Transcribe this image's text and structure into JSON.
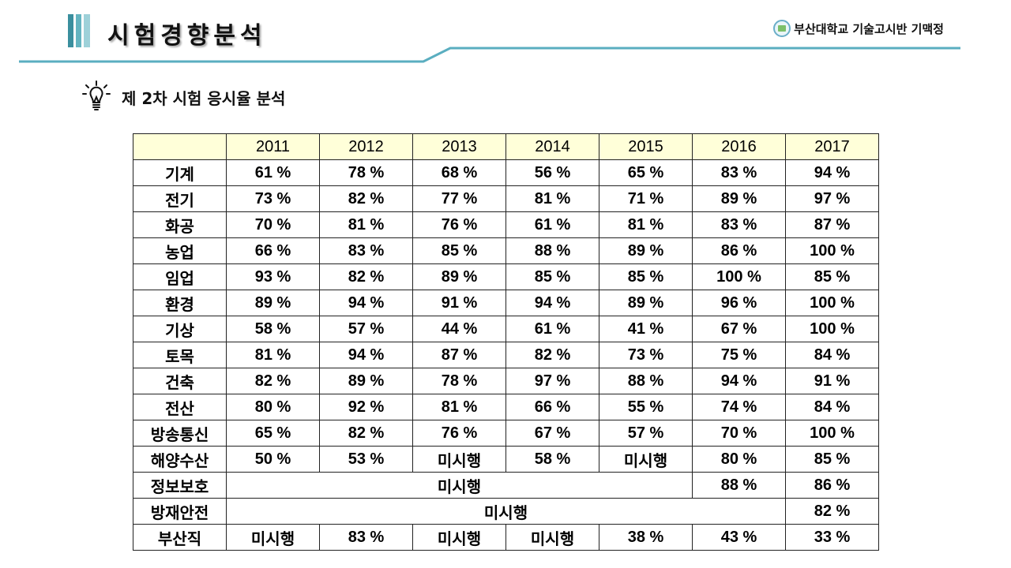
{
  "header": {
    "title": "시험경향분석",
    "org": "부산대학교 기술고시반 기맥정",
    "accent_color": "#5aaec0",
    "icon": "university-seal-icon"
  },
  "section": {
    "icon": "lightbulb-icon",
    "subtitle": "제 2차 시험 응시율 분석"
  },
  "table": {
    "corner": "",
    "years": [
      "2011",
      "2012",
      "2013",
      "2014",
      "2015",
      "2016",
      "2017"
    ],
    "rows": [
      {
        "field": "기계",
        "cells": [
          {
            "v": "61 %"
          },
          {
            "v": "78 %"
          },
          {
            "v": "68 %"
          },
          {
            "v": "56 %"
          },
          {
            "v": "65 %"
          },
          {
            "v": "83 %"
          },
          {
            "v": "94 %"
          }
        ]
      },
      {
        "field": "전기",
        "cells": [
          {
            "v": "73 %"
          },
          {
            "v": "82 %"
          },
          {
            "v": "77 %"
          },
          {
            "v": "81 %"
          },
          {
            "v": "71 %"
          },
          {
            "v": "89 %"
          },
          {
            "v": "97 %"
          }
        ]
      },
      {
        "field": "화공",
        "cells": [
          {
            "v": "70 %"
          },
          {
            "v": "81 %"
          },
          {
            "v": "76 %"
          },
          {
            "v": "61 %"
          },
          {
            "v": "81 %"
          },
          {
            "v": "83 %"
          },
          {
            "v": "87 %"
          }
        ]
      },
      {
        "field": "농업",
        "cells": [
          {
            "v": "66 %"
          },
          {
            "v": "83 %"
          },
          {
            "v": "85 %"
          },
          {
            "v": "88 %"
          },
          {
            "v": "89 %"
          },
          {
            "v": "86 %"
          },
          {
            "v": "100 %"
          }
        ]
      },
      {
        "field": "임업",
        "cells": [
          {
            "v": "93 %"
          },
          {
            "v": "82 %"
          },
          {
            "v": "89 %"
          },
          {
            "v": "85 %"
          },
          {
            "v": "85 %"
          },
          {
            "v": "100 %"
          },
          {
            "v": "85 %"
          }
        ]
      },
      {
        "field": "환경",
        "cells": [
          {
            "v": "89 %"
          },
          {
            "v": "94 %"
          },
          {
            "v": "91 %"
          },
          {
            "v": "94 %"
          },
          {
            "v": "89 %"
          },
          {
            "v": "96 %"
          },
          {
            "v": "100 %"
          }
        ]
      },
      {
        "field": "기상",
        "cells": [
          {
            "v": "58 %"
          },
          {
            "v": "57 %"
          },
          {
            "v": "44 %"
          },
          {
            "v": "61 %"
          },
          {
            "v": "41 %"
          },
          {
            "v": "67 %"
          },
          {
            "v": "100 %"
          }
        ]
      },
      {
        "field": "토목",
        "cells": [
          {
            "v": "81 %"
          },
          {
            "v": "94 %"
          },
          {
            "v": "87 %"
          },
          {
            "v": "82 %"
          },
          {
            "v": "73 %"
          },
          {
            "v": "75 %"
          },
          {
            "v": "84 %"
          }
        ]
      },
      {
        "field": "건축",
        "cells": [
          {
            "v": "82 %"
          },
          {
            "v": "89 %"
          },
          {
            "v": "78 %"
          },
          {
            "v": "97 %"
          },
          {
            "v": "88 %"
          },
          {
            "v": "94 %"
          },
          {
            "v": "91 %"
          }
        ]
      },
      {
        "field": "전산",
        "cells": [
          {
            "v": "80 %"
          },
          {
            "v": "92 %"
          },
          {
            "v": "81 %"
          },
          {
            "v": "66 %"
          },
          {
            "v": "55 %"
          },
          {
            "v": "74 %"
          },
          {
            "v": "84 %"
          }
        ]
      },
      {
        "field": "방송통신",
        "cells": [
          {
            "v": "65 %"
          },
          {
            "v": "82 %"
          },
          {
            "v": "76 %"
          },
          {
            "v": "67 %"
          },
          {
            "v": "57 %"
          },
          {
            "v": "70 %"
          },
          {
            "v": "100 %"
          }
        ]
      },
      {
        "field": "해양수산",
        "cells": [
          {
            "v": "50 %"
          },
          {
            "v": "53 %"
          },
          {
            "v": "미시행"
          },
          {
            "v": "58 %"
          },
          {
            "v": "미시행"
          },
          {
            "v": "80 %"
          },
          {
            "v": "85 %"
          }
        ]
      },
      {
        "field": "정보보호",
        "cells": [
          {
            "v": "미시행",
            "span": 5
          },
          {
            "v": "88 %"
          },
          {
            "v": "86 %"
          }
        ]
      },
      {
        "field": "방재안전",
        "cells": [
          {
            "v": "미시행",
            "span": 6
          },
          {
            "v": "82 %"
          }
        ]
      },
      {
        "field": "부산직",
        "cells": [
          {
            "v": "미시행"
          },
          {
            "v": "83 %"
          },
          {
            "v": "미시행"
          },
          {
            "v": "미시행"
          },
          {
            "v": "38 %"
          },
          {
            "v": "43 %"
          },
          {
            "v": "33 %"
          }
        ]
      }
    ]
  }
}
